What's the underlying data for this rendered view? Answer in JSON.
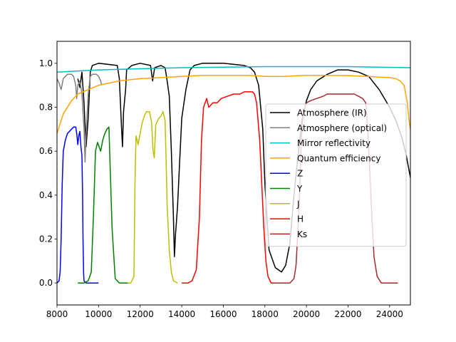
{
  "chart_data": {
    "type": "line",
    "title": "",
    "xlabel": "",
    "ylabel": "",
    "xlim": [
      8000,
      25000
    ],
    "ylim": [
      -0.1,
      1.1
    ],
    "grid": false,
    "legend_position": "center-right",
    "xticks": [
      {
        "value": 8000,
        "label": "8000"
      },
      {
        "value": 10000,
        "label": "10000"
      },
      {
        "value": 12000,
        "label": "12000"
      },
      {
        "value": 14000,
        "label": "14000"
      },
      {
        "value": 16000,
        "label": "16000"
      },
      {
        "value": 18000,
        "label": "18000"
      },
      {
        "value": 20000,
        "label": "20000"
      },
      {
        "value": 22000,
        "label": "22000"
      },
      {
        "value": 24000,
        "label": "24000"
      }
    ],
    "yticks": [
      {
        "value": 0.0,
        "label": "0.0"
      },
      {
        "value": 0.2,
        "label": "0.2"
      },
      {
        "value": 0.4,
        "label": "0.4"
      },
      {
        "value": 0.6,
        "label": "0.6"
      },
      {
        "value": 0.8,
        "label": "0.8"
      },
      {
        "value": 1.0,
        "label": "1.0"
      }
    ],
    "series": [
      {
        "name": "Atmosphere (IR)",
        "color": "#000000",
        "noise": 0.0,
        "points": [
          [
            9000,
            0.93
          ],
          [
            9100,
            0.89
          ],
          [
            9200,
            0.96
          ],
          [
            9300,
            0.82
          ],
          [
            9400,
            0.62
          ],
          [
            9500,
            0.75
          ],
          [
            9600,
            0.96
          ],
          [
            9700,
            0.99
          ],
          [
            10000,
            1.0
          ],
          [
            10900,
            0.99
          ],
          [
            11000,
            0.93
          ],
          [
            11100,
            0.72
          ],
          [
            11150,
            0.62
          ],
          [
            11200,
            0.78
          ],
          [
            11300,
            0.88
          ],
          [
            11350,
            0.97
          ],
          [
            11600,
            0.99
          ],
          [
            12000,
            1.0
          ],
          [
            12500,
            0.99
          ],
          [
            12600,
            0.92
          ],
          [
            12700,
            0.98
          ],
          [
            13000,
            0.99
          ],
          [
            13200,
            0.98
          ],
          [
            13300,
            0.92
          ],
          [
            13400,
            0.85
          ],
          [
            13500,
            0.6
          ],
          [
            13600,
            0.3
          ],
          [
            13650,
            0.12
          ],
          [
            13700,
            0.22
          ],
          [
            13800,
            0.35
          ],
          [
            13900,
            0.55
          ],
          [
            14000,
            0.75
          ],
          [
            14200,
            0.88
          ],
          [
            14400,
            0.97
          ],
          [
            14600,
            0.99
          ],
          [
            15000,
            1.0
          ],
          [
            16000,
            1.0
          ],
          [
            17000,
            0.99
          ],
          [
            17300,
            0.98
          ],
          [
            17500,
            0.96
          ],
          [
            17700,
            0.9
          ],
          [
            17900,
            0.7
          ],
          [
            18000,
            0.45
          ],
          [
            18200,
            0.15
          ],
          [
            18500,
            0.07
          ],
          [
            18800,
            0.05
          ],
          [
            19000,
            0.08
          ],
          [
            19200,
            0.18
          ],
          [
            19400,
            0.4
          ],
          [
            19600,
            0.58
          ],
          [
            19800,
            0.75
          ],
          [
            20000,
            0.83
          ],
          [
            20200,
            0.88
          ],
          [
            20500,
            0.92
          ],
          [
            21000,
            0.95
          ],
          [
            21500,
            0.97
          ],
          [
            22000,
            0.97
          ],
          [
            22500,
            0.96
          ],
          [
            23000,
            0.94
          ],
          [
            23500,
            0.88
          ],
          [
            24000,
            0.8
          ],
          [
            24300,
            0.74
          ],
          [
            24600,
            0.66
          ],
          [
            24800,
            0.58
          ],
          [
            25000,
            0.48
          ]
        ]
      },
      {
        "name": "Atmosphere (optical)",
        "color": "#808080",
        "noise": 0.0,
        "points": [
          [
            8000,
            0.93
          ],
          [
            8100,
            0.91
          ],
          [
            8200,
            0.88
          ],
          [
            8300,
            0.93
          ],
          [
            8500,
            0.95
          ],
          [
            8700,
            0.95
          ],
          [
            8800,
            0.94
          ],
          [
            8900,
            0.9
          ],
          [
            8950,
            0.84
          ],
          [
            9000,
            0.9
          ],
          [
            9100,
            0.92
          ],
          [
            9200,
            0.86
          ],
          [
            9300,
            0.7
          ],
          [
            9350,
            0.55
          ],
          [
            9400,
            0.68
          ],
          [
            9500,
            0.86
          ],
          [
            9600,
            0.94
          ],
          [
            9700,
            0.95
          ],
          [
            9900,
            0.95
          ],
          [
            10000,
            0.94
          ],
          [
            10100,
            0.92
          ],
          [
            10150,
            0.9
          ]
        ]
      },
      {
        "name": "Mirror reflectivity",
        "color": "#00bfbf",
        "noise": 0.0,
        "points": [
          [
            8000,
            0.96
          ],
          [
            10000,
            0.97
          ],
          [
            12000,
            0.975
          ],
          [
            14000,
            0.98
          ],
          [
            18000,
            0.985
          ],
          [
            22000,
            0.985
          ],
          [
            25000,
            0.98
          ]
        ]
      },
      {
        "name": "Quantum efficiency",
        "color": "#ffa500",
        "noise": 0.0,
        "points": [
          [
            8000,
            0.68
          ],
          [
            8300,
            0.77
          ],
          [
            8700,
            0.83
          ],
          [
            9000,
            0.86
          ],
          [
            9500,
            0.88
          ],
          [
            10000,
            0.9
          ],
          [
            10500,
            0.91
          ],
          [
            11000,
            0.92
          ],
          [
            12000,
            0.93
          ],
          [
            13000,
            0.935
          ],
          [
            14000,
            0.94
          ],
          [
            15000,
            0.945
          ],
          [
            16000,
            0.945
          ],
          [
            17000,
            0.945
          ],
          [
            17500,
            0.944
          ],
          [
            18000,
            0.94
          ],
          [
            18500,
            0.94
          ],
          [
            19000,
            0.94
          ],
          [
            19500,
            0.943
          ],
          [
            20000,
            0.945
          ],
          [
            21000,
            0.945
          ],
          [
            22000,
            0.944
          ],
          [
            23000,
            0.94
          ],
          [
            23500,
            0.937
          ],
          [
            24000,
            0.935
          ],
          [
            24300,
            0.93
          ],
          [
            24500,
            0.92
          ],
          [
            24700,
            0.9
          ],
          [
            24850,
            0.82
          ],
          [
            24950,
            0.73
          ],
          [
            25000,
            0.7
          ]
        ]
      },
      {
        "name": "Z",
        "color": "#0000ff",
        "noise": 0.0,
        "points": [
          [
            8000,
            0.0
          ],
          [
            8100,
            0.01
          ],
          [
            8150,
            0.05
          ],
          [
            8200,
            0.2
          ],
          [
            8250,
            0.45
          ],
          [
            8300,
            0.6
          ],
          [
            8400,
            0.65
          ],
          [
            8500,
            0.68
          ],
          [
            8600,
            0.69
          ],
          [
            8700,
            0.7
          ],
          [
            8800,
            0.71
          ],
          [
            8900,
            0.71
          ],
          [
            8950,
            0.68
          ],
          [
            9000,
            0.63
          ],
          [
            9050,
            0.67
          ],
          [
            9100,
            0.69
          ],
          [
            9150,
            0.62
          ],
          [
            9200,
            0.58
          ],
          [
            9230,
            0.4
          ],
          [
            9250,
            0.2
          ],
          [
            9280,
            0.05
          ],
          [
            9300,
            0.01
          ],
          [
            9400,
            0.0
          ],
          [
            10000,
            0.0
          ]
        ]
      },
      {
        "name": "Y",
        "color": "#008000",
        "noise": 0.0,
        "points": [
          [
            9000,
            0.0
          ],
          [
            9300,
            0.0
          ],
          [
            9500,
            0.01
          ],
          [
            9650,
            0.05
          ],
          [
            9750,
            0.3
          ],
          [
            9850,
            0.6
          ],
          [
            9950,
            0.64
          ],
          [
            10100,
            0.6
          ],
          [
            10200,
            0.65
          ],
          [
            10300,
            0.68
          ],
          [
            10400,
            0.7
          ],
          [
            10500,
            0.71
          ],
          [
            10550,
            0.55
          ],
          [
            10650,
            0.25
          ],
          [
            10800,
            0.02
          ],
          [
            11000,
            0.0
          ],
          [
            11500,
            0.0
          ]
        ]
      },
      {
        "name": "J",
        "color": "#bfbf00",
        "noise": 0.0,
        "points": [
          [
            11400,
            0.0
          ],
          [
            11550,
            0.0
          ],
          [
            11700,
            0.03
          ],
          [
            11750,
            0.45
          ],
          [
            11800,
            0.67
          ],
          [
            11900,
            0.63
          ],
          [
            12000,
            0.68
          ],
          [
            12100,
            0.73
          ],
          [
            12200,
            0.76
          ],
          [
            12300,
            0.78
          ],
          [
            12450,
            0.78
          ],
          [
            12550,
            0.73
          ],
          [
            12620,
            0.6
          ],
          [
            12680,
            0.57
          ],
          [
            12750,
            0.72
          ],
          [
            12900,
            0.75
          ],
          [
            13000,
            0.76
          ],
          [
            13100,
            0.78
          ],
          [
            13200,
            0.74
          ],
          [
            13250,
            0.55
          ],
          [
            13300,
            0.35
          ],
          [
            13400,
            0.15
          ],
          [
            13500,
            0.05
          ],
          [
            13600,
            0.01
          ],
          [
            13800,
            0.0
          ]
        ]
      },
      {
        "name": "H",
        "color": "#ff0000",
        "noise": 0.0,
        "points": [
          [
            14000,
            0.0
          ],
          [
            14300,
            0.0
          ],
          [
            14500,
            0.01
          ],
          [
            14700,
            0.06
          ],
          [
            14850,
            0.3
          ],
          [
            14950,
            0.65
          ],
          [
            15050,
            0.8
          ],
          [
            15200,
            0.84
          ],
          [
            15300,
            0.8
          ],
          [
            15500,
            0.82
          ],
          [
            15700,
            0.82
          ],
          [
            15900,
            0.84
          ],
          [
            16200,
            0.85
          ],
          [
            16500,
            0.86
          ],
          [
            16800,
            0.86
          ],
          [
            17000,
            0.87
          ],
          [
            17200,
            0.87
          ],
          [
            17400,
            0.87
          ],
          [
            17500,
            0.86
          ],
          [
            17600,
            0.82
          ],
          [
            17750,
            0.65
          ],
          [
            17850,
            0.45
          ],
          [
            17950,
            0.25
          ],
          [
            18050,
            0.1
          ],
          [
            18150,
            0.03
          ],
          [
            18300,
            0.0
          ],
          [
            18600,
            0.0
          ]
        ]
      },
      {
        "name": "Ks",
        "color": "#a52a2a",
        "noise": 0.0,
        "points": [
          [
            18500,
            0.0
          ],
          [
            19200,
            0.0
          ],
          [
            19400,
            0.02
          ],
          [
            19500,
            0.08
          ],
          [
            19650,
            0.35
          ],
          [
            19750,
            0.65
          ],
          [
            19850,
            0.78
          ],
          [
            20000,
            0.82
          ],
          [
            20200,
            0.83
          ],
          [
            20500,
            0.84
          ],
          [
            20800,
            0.85
          ],
          [
            21000,
            0.86
          ],
          [
            21200,
            0.86
          ],
          [
            21500,
            0.86
          ],
          [
            21800,
            0.86
          ],
          [
            22000,
            0.86
          ],
          [
            22300,
            0.86
          ],
          [
            22500,
            0.85
          ],
          [
            22700,
            0.84
          ],
          [
            22850,
            0.82
          ],
          [
            22950,
            0.7
          ],
          [
            23050,
            0.5
          ],
          [
            23150,
            0.3
          ],
          [
            23250,
            0.12
          ],
          [
            23400,
            0.03
          ],
          [
            23600,
            0.0
          ],
          [
            24400,
            0.0
          ]
        ]
      }
    ]
  }
}
